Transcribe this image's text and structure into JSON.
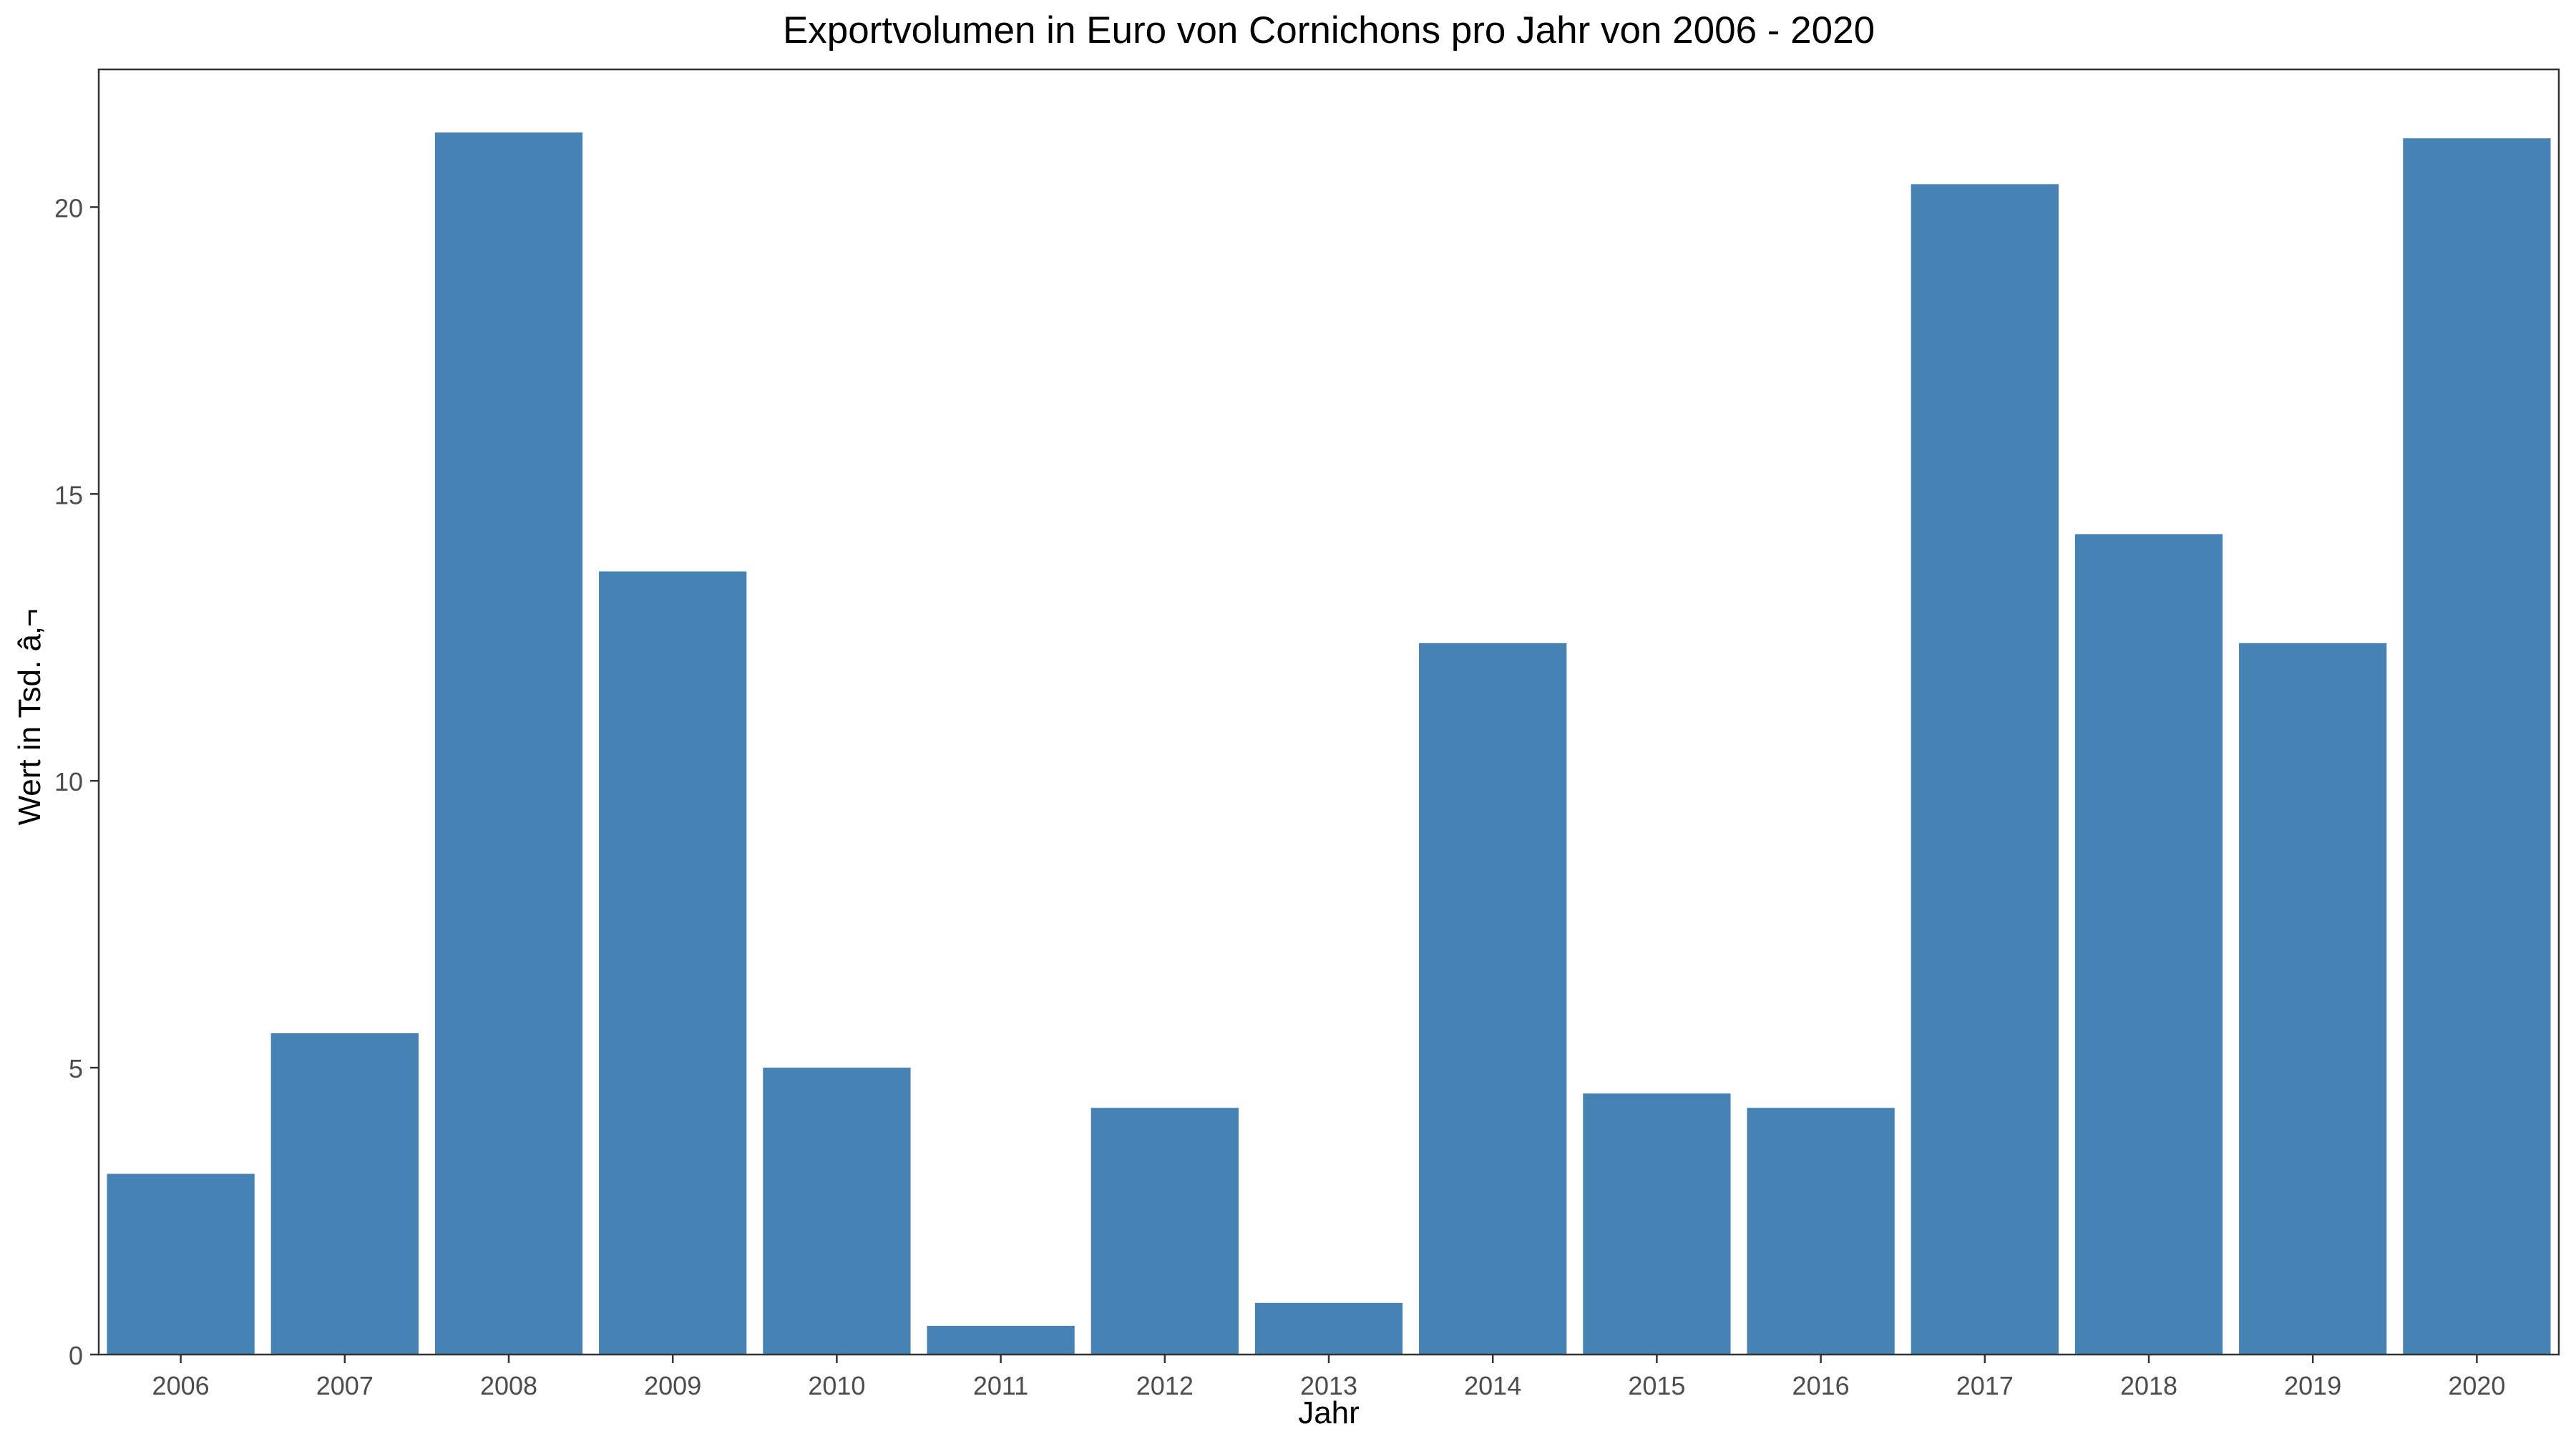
{
  "chart_data": {
    "type": "bar",
    "title": "Exportvolumen in Euro von Cornichons pro Jahr von 2006 - 2020",
    "xlabel": "Jahr",
    "ylabel": "Wert in Tsd. â‚¬",
    "categories": [
      "2006",
      "2007",
      "2008",
      "2009",
      "2010",
      "2011",
      "2012",
      "2013",
      "2014",
      "2015",
      "2016",
      "2017",
      "2018",
      "2019",
      "2020"
    ],
    "values": [
      3.15,
      5.6,
      21.3,
      13.65,
      5.0,
      0.5,
      4.3,
      0.9,
      12.4,
      4.55,
      4.3,
      20.4,
      14.3,
      12.4,
      21.2
    ],
    "ylim": [
      0,
      22.4
    ],
    "yticks": [
      0,
      5,
      10,
      15,
      20
    ],
    "grid": false,
    "legend": "none",
    "colors": {
      "bar": "#4682B4",
      "axis": "#333333",
      "tick_text": "#4D4D4D"
    }
  }
}
